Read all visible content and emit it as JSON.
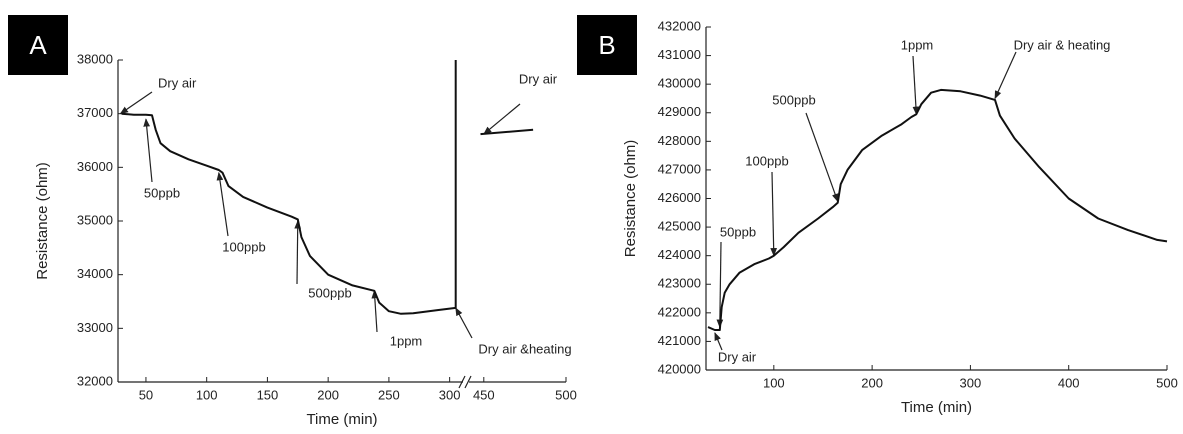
{
  "chart_data": [
    {
      "type": "line",
      "panel_label": "A",
      "x_label": "Time (min)",
      "y_label": "Resistance (ohm)",
      "x_segments": [
        [
          27,
          311
        ],
        [
          441,
          500
        ]
      ],
      "ylim": [
        32000,
        38000
      ],
      "xticks": [
        50,
        100,
        150,
        200,
        250,
        300,
        450,
        500
      ],
      "yticks": [
        32000,
        33000,
        34000,
        35000,
        36000,
        37000,
        38000
      ],
      "x": [
        30,
        40,
        50,
        55,
        58,
        62,
        70,
        85,
        100,
        110,
        113,
        118,
        130,
        150,
        170,
        175,
        178,
        185,
        200,
        220,
        238,
        242,
        250,
        260,
        270,
        290,
        305,
        305,
        null,
        448,
        480
      ],
      "series": [
        {
          "color": "#111111",
          "values": [
            37000,
            36980,
            36980,
            36970,
            36700,
            36450,
            36300,
            36150,
            36030,
            35950,
            35900,
            35650,
            35450,
            35250,
            35080,
            35030,
            34700,
            34350,
            34000,
            33800,
            33700,
            33480,
            33320,
            33270,
            33280,
            33340,
            33380,
            38000,
            null,
            36620,
            36700
          ]
        }
      ],
      "annotations": [
        {
          "text": "Dry air",
          "x": 29,
          "y": 37000
        },
        {
          "text": "50ppb",
          "x": 50,
          "y": 36900
        },
        {
          "text": "100ppb",
          "x": 110,
          "y": 35900
        },
        {
          "text": "500ppb",
          "x": 175,
          "y": 35000
        },
        {
          "text": "1ppm",
          "x": 238,
          "y": 33700
        },
        {
          "text": "Dry air &heating",
          "x": 305,
          "y": 33380
        },
        {
          "text": "Dry air",
          "x": 450,
          "y": 36620
        }
      ]
    },
    {
      "type": "line",
      "panel_label": "B",
      "x_label": "Time (min)",
      "y_label": "Resistance (ohm)",
      "xlim": [
        31,
        500
      ],
      "ylim": [
        420000,
        432000
      ],
      "xticks": [
        100,
        200,
        300,
        400,
        500
      ],
      "yticks": [
        420000,
        421000,
        422000,
        423000,
        424000,
        425000,
        426000,
        427000,
        428000,
        429000,
        430000,
        431000,
        432000
      ],
      "x": [
        33,
        40,
        45,
        47,
        50,
        55,
        65,
        80,
        95,
        100,
        110,
        125,
        145,
        160,
        165,
        168,
        175,
        190,
        210,
        230,
        240,
        245,
        250,
        260,
        270,
        290,
        310,
        325,
        330,
        345,
        370,
        400,
        430,
        460,
        490,
        500
      ],
      "series": [
        {
          "color": "#111111",
          "values": [
            421500,
            421400,
            421400,
            422200,
            422700,
            423000,
            423400,
            423700,
            423900,
            424000,
            424300,
            424800,
            425300,
            425700,
            425850,
            426500,
            427000,
            427700,
            428200,
            428600,
            428850,
            428950,
            429300,
            429700,
            429800,
            429750,
            429600,
            429450,
            428900,
            428100,
            427100,
            426000,
            425300,
            424900,
            424550,
            424500
          ]
        }
      ],
      "annotations": [
        {
          "text": "50ppb",
          "x": 45,
          "y": 421500
        },
        {
          "text": "Dry air",
          "x": 40,
          "y": 421300
        },
        {
          "text": "100ppb",
          "x": 100,
          "y": 424000
        },
        {
          "text": "500ppb",
          "x": 165,
          "y": 425900
        },
        {
          "text": "1ppm",
          "x": 245,
          "y": 428950
        },
        {
          "text": "Dry air & heating",
          "x": 325,
          "y": 429500
        }
      ]
    }
  ]
}
